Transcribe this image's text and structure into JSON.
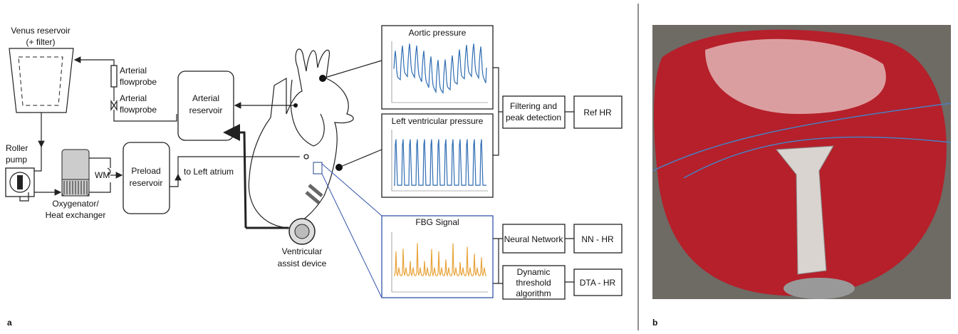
{
  "panels": {
    "a": {
      "label": "a",
      "venus_reservoir": {
        "lines": [
          "Venus reservoir",
          "(+ filter)"
        ]
      },
      "arterial_flowprobe_1": {
        "lines": [
          "Arterial",
          "flowprobe"
        ]
      },
      "arterial_flowprobe_2": {
        "lines": [
          "Arterial",
          "flowprobe"
        ]
      },
      "arterial_reservoir": {
        "lines": [
          "Arterial",
          "reservoir"
        ]
      },
      "roller_pump": {
        "lines": [
          "Roller",
          "pump"
        ]
      },
      "wm": "WM",
      "preload_reservoir": {
        "lines": [
          "Preload",
          "reservoir"
        ]
      },
      "oxygenator": {
        "lines": [
          "Oxygenator/",
          "Heat exchanger"
        ]
      },
      "to_left_atrium": "to Left atrium",
      "vad": {
        "lines": [
          "Ventricular",
          "assist device"
        ]
      },
      "plots": [
        "Aortic pressure",
        "Left ventricular pressure",
        "FBG Signal"
      ],
      "processing": {
        "filtering": {
          "lines": [
            "Filtering and",
            "peak detection"
          ]
        },
        "ref_hr": "Ref HR",
        "neural_network": "Neural Network",
        "nn_hr": "NN - HR",
        "dta": {
          "lines": [
            "Dynamic",
            "threshold",
            "algorithm"
          ]
        },
        "dta_hr": "DTA - HR"
      }
    },
    "b": {
      "label": "b"
    }
  }
}
